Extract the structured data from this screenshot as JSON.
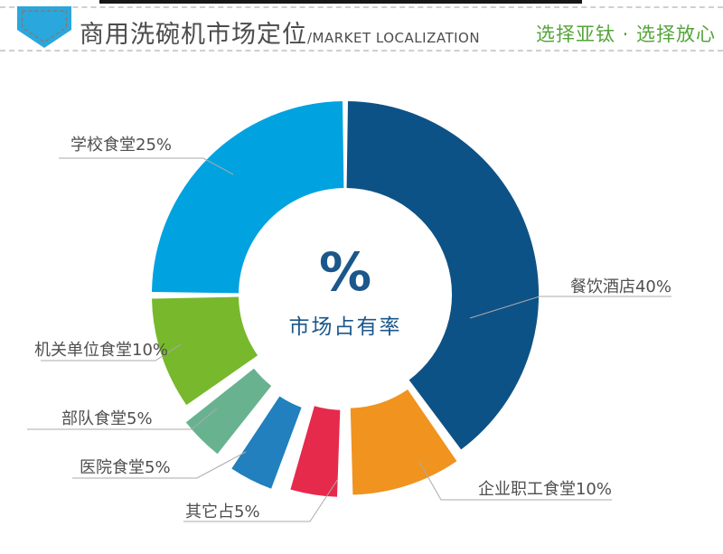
{
  "header": {
    "title_cn": "商用洗碗机市场定位",
    "title_en": "/MARKET LOCALIZATION",
    "slogan": "选择亚钛 · 选择放心",
    "icon": "blue-ribbon-banner",
    "accent_color": "#2aa7dc",
    "slogan_color": "#55a43b"
  },
  "chart_data": {
    "type": "pie",
    "subtype": "donut-exploded",
    "title": "商用洗碗机市场定位/MARKET LOCALIZATION",
    "center_label": {
      "symbol": "%",
      "caption": "市场占有率",
      "color": "#1b578b"
    },
    "legend_position": "callout-labels",
    "start_angle_deg": 0,
    "clockwise": true,
    "unit": "percent",
    "slices": [
      {
        "name": "餐饮酒店",
        "label": "餐饮酒店40%",
        "value": 40,
        "color": "#0d5286"
      },
      {
        "name": "企业职工食堂",
        "label": "企业职工食堂10%",
        "value": 10,
        "color": "#f0931f"
      },
      {
        "name": "其它",
        "label": "其它占5%",
        "value": 5,
        "color": "#e62a4c"
      },
      {
        "name": "医院食堂",
        "label": "医院食堂5%",
        "value": 5,
        "color": "#2180bd"
      },
      {
        "name": "部队食堂",
        "label": "部队食堂5%",
        "value": 5,
        "color": "#68b290"
      },
      {
        "name": "机关单位食堂",
        "label": "机关单位食堂10%",
        "value": 10,
        "color": "#77b82d"
      },
      {
        "name": "学校食堂",
        "label": "学校食堂25%",
        "value": 25,
        "color": "#00a2e0"
      }
    ]
  }
}
